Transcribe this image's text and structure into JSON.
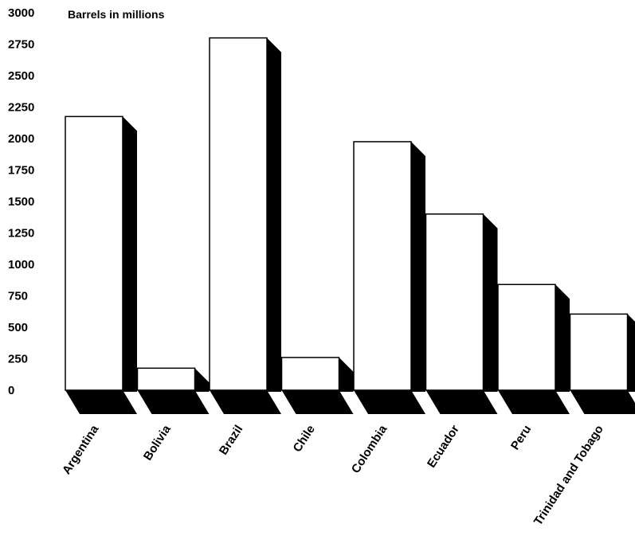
{
  "chart_data": {
    "type": "bar",
    "unit_label": "Barrels in millions",
    "categories": [
      "Argentina",
      "Bolivia",
      "Brazil",
      "Chile",
      "Colombia",
      "Ecuador",
      "Peru",
      "Trinidad and Tobago"
    ],
    "values": [
      2175,
      175,
      2800,
      260,
      1975,
      1400,
      840,
      605
    ],
    "ylim": [
      0,
      3000
    ],
    "yticks": [
      "0",
      "250",
      "500",
      "750",
      "1000",
      "1250",
      "1500",
      "1750",
      "2000",
      "2250",
      "2500",
      "2750",
      "3000"
    ],
    "grid": false,
    "style": "3d-bar",
    "colors": {
      "face": "#ffffff",
      "shadow": "#000000",
      "outline": "#000000"
    }
  }
}
